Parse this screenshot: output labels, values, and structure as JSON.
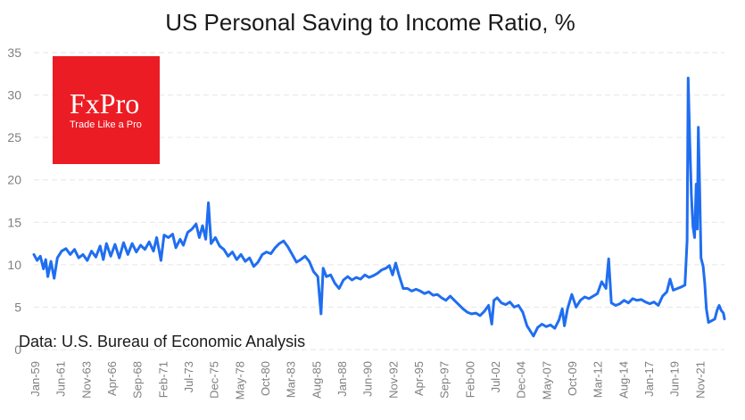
{
  "chart_data": {
    "type": "line",
    "title": "US Personal Saving to Income Ratio, %",
    "xlabel": "",
    "ylabel": "",
    "ylim": [
      0,
      35
    ],
    "yticks": [
      0,
      5,
      10,
      15,
      20,
      25,
      30,
      35
    ],
    "xticks": [
      "Jan-59",
      "Jun-61",
      "Nov-63",
      "Apr-66",
      "Sep-68",
      "Feb-71",
      "Jul-73",
      "Dec-75",
      "May-78",
      "Oct-80",
      "Mar-83",
      "Aug-85",
      "Jan-88",
      "Jun-90",
      "Nov-92",
      "Apr-95",
      "Sep-97",
      "Feb-00",
      "Jul-02",
      "Dec-04",
      "May-07",
      "Oct-09",
      "Mar-12",
      "Aug-14",
      "Jan-17",
      "Jun-19",
      "Nov-21"
    ],
    "x_start": 1959.0,
    "x_end": 2023.7,
    "grid": true,
    "line_color": "#1f6ef0",
    "series": [
      {
        "name": "",
        "points": [
          [
            1959.0,
            11.2
          ],
          [
            1959.3,
            10.5
          ],
          [
            1959.6,
            11.0
          ],
          [
            1959.9,
            9.5
          ],
          [
            1960.1,
            10.6
          ],
          [
            1960.3,
            8.6
          ],
          [
            1960.6,
            10.4
          ],
          [
            1960.9,
            8.4
          ],
          [
            1961.2,
            10.8
          ],
          [
            1961.6,
            11.6
          ],
          [
            1962.0,
            11.9
          ],
          [
            1962.4,
            11.2
          ],
          [
            1962.8,
            11.8
          ],
          [
            1963.2,
            10.8
          ],
          [
            1963.6,
            11.2
          ],
          [
            1964.0,
            10.5
          ],
          [
            1964.4,
            11.6
          ],
          [
            1964.8,
            10.9
          ],
          [
            1965.2,
            12.2
          ],
          [
            1965.5,
            10.6
          ],
          [
            1965.8,
            12.5
          ],
          [
            1966.2,
            11.0
          ],
          [
            1966.6,
            12.4
          ],
          [
            1967.0,
            10.8
          ],
          [
            1967.4,
            12.6
          ],
          [
            1967.8,
            11.2
          ],
          [
            1968.2,
            12.5
          ],
          [
            1968.6,
            11.5
          ],
          [
            1969.0,
            12.3
          ],
          [
            1969.4,
            11.8
          ],
          [
            1969.8,
            12.7
          ],
          [
            1970.2,
            11.6
          ],
          [
            1970.5,
            13.2
          ],
          [
            1970.9,
            10.5
          ],
          [
            1971.2,
            13.5
          ],
          [
            1971.6,
            13.2
          ],
          [
            1972.0,
            13.6
          ],
          [
            1972.3,
            12.0
          ],
          [
            1972.7,
            13.0
          ],
          [
            1973.0,
            12.3
          ],
          [
            1973.4,
            13.8
          ],
          [
            1973.8,
            14.2
          ],
          [
            1974.2,
            14.8
          ],
          [
            1974.5,
            13.2
          ],
          [
            1974.8,
            14.6
          ],
          [
            1975.1,
            13.0
          ],
          [
            1975.35,
            17.3
          ],
          [
            1975.6,
            12.5
          ],
          [
            1976.0,
            13.2
          ],
          [
            1976.4,
            12.2
          ],
          [
            1976.8,
            11.8
          ],
          [
            1977.2,
            11.0
          ],
          [
            1977.6,
            11.5
          ],
          [
            1978.0,
            10.6
          ],
          [
            1978.4,
            11.2
          ],
          [
            1978.8,
            10.4
          ],
          [
            1979.2,
            10.8
          ],
          [
            1979.6,
            9.8
          ],
          [
            1980.0,
            10.3
          ],
          [
            1980.4,
            11.2
          ],
          [
            1980.8,
            11.5
          ],
          [
            1981.2,
            11.3
          ],
          [
            1981.6,
            12.0
          ],
          [
            1982.0,
            12.5
          ],
          [
            1982.4,
            12.8
          ],
          [
            1982.8,
            12.1
          ],
          [
            1983.2,
            11.2
          ],
          [
            1983.6,
            10.3
          ],
          [
            1984.0,
            10.6
          ],
          [
            1984.4,
            11.0
          ],
          [
            1984.8,
            10.4
          ],
          [
            1985.2,
            9.2
          ],
          [
            1985.6,
            8.6
          ],
          [
            1985.9,
            4.2
          ],
          [
            1986.1,
            9.6
          ],
          [
            1986.4,
            8.6
          ],
          [
            1986.8,
            8.8
          ],
          [
            1987.2,
            7.8
          ],
          [
            1987.6,
            7.2
          ],
          [
            1988.0,
            8.2
          ],
          [
            1988.4,
            8.6
          ],
          [
            1988.8,
            8.2
          ],
          [
            1989.2,
            8.5
          ],
          [
            1989.6,
            8.3
          ],
          [
            1990.0,
            8.8
          ],
          [
            1990.4,
            8.5
          ],
          [
            1990.8,
            8.7
          ],
          [
            1991.2,
            9.0
          ],
          [
            1991.6,
            9.4
          ],
          [
            1992.0,
            9.6
          ],
          [
            1992.3,
            9.9
          ],
          [
            1992.6,
            8.8
          ],
          [
            1992.9,
            10.2
          ],
          [
            1993.2,
            8.8
          ],
          [
            1993.6,
            7.2
          ],
          [
            1994.0,
            7.2
          ],
          [
            1994.4,
            6.9
          ],
          [
            1994.8,
            7.1
          ],
          [
            1995.2,
            6.9
          ],
          [
            1995.6,
            6.6
          ],
          [
            1996.0,
            6.8
          ],
          [
            1996.4,
            6.4
          ],
          [
            1996.8,
            6.5
          ],
          [
            1997.2,
            6.1
          ],
          [
            1997.6,
            5.8
          ],
          [
            1998.0,
            6.3
          ],
          [
            1998.4,
            5.8
          ],
          [
            1998.8,
            5.3
          ],
          [
            1999.2,
            4.8
          ],
          [
            1999.6,
            4.4
          ],
          [
            2000.0,
            4.2
          ],
          [
            2000.4,
            4.3
          ],
          [
            2000.8,
            4.0
          ],
          [
            2001.2,
            4.5
          ],
          [
            2001.6,
            5.2
          ],
          [
            2001.9,
            3.0
          ],
          [
            2002.1,
            5.8
          ],
          [
            2002.4,
            6.1
          ],
          [
            2002.8,
            5.5
          ],
          [
            2003.2,
            5.3
          ],
          [
            2003.6,
            5.6
          ],
          [
            2004.0,
            5.0
          ],
          [
            2004.4,
            5.2
          ],
          [
            2004.8,
            4.4
          ],
          [
            2005.2,
            2.8
          ],
          [
            2005.6,
            2.0
          ],
          [
            2005.8,
            1.6
          ],
          [
            2006.2,
            2.6
          ],
          [
            2006.6,
            3.0
          ],
          [
            2007.0,
            2.7
          ],
          [
            2007.4,
            2.9
          ],
          [
            2007.8,
            2.5
          ],
          [
            2008.2,
            3.5
          ],
          [
            2008.5,
            4.8
          ],
          [
            2008.7,
            2.8
          ],
          [
            2009.0,
            4.8
          ],
          [
            2009.4,
            6.5
          ],
          [
            2009.8,
            5.0
          ],
          [
            2010.2,
            5.8
          ],
          [
            2010.6,
            6.2
          ],
          [
            2011.0,
            6.0
          ],
          [
            2011.4,
            6.3
          ],
          [
            2011.8,
            6.6
          ],
          [
            2012.2,
            8.0
          ],
          [
            2012.6,
            7.2
          ],
          [
            2012.85,
            10.7
          ],
          [
            2013.1,
            5.5
          ],
          [
            2013.5,
            5.2
          ],
          [
            2013.9,
            5.4
          ],
          [
            2014.3,
            5.8
          ],
          [
            2014.7,
            5.5
          ],
          [
            2015.1,
            6.0
          ],
          [
            2015.5,
            5.8
          ],
          [
            2015.9,
            5.9
          ],
          [
            2016.3,
            5.6
          ],
          [
            2016.7,
            5.4
          ],
          [
            2017.1,
            5.6
          ],
          [
            2017.5,
            5.2
          ],
          [
            2017.9,
            6.3
          ],
          [
            2018.3,
            6.8
          ],
          [
            2018.6,
            8.3
          ],
          [
            2018.9,
            7.0
          ],
          [
            2019.3,
            7.2
          ],
          [
            2019.7,
            7.4
          ],
          [
            2020.0,
            7.6
          ],
          [
            2020.2,
            12.8
          ],
          [
            2020.3,
            32.0
          ],
          [
            2020.45,
            24.5
          ],
          [
            2020.6,
            18.2
          ],
          [
            2020.75,
            14.5
          ],
          [
            2020.9,
            13.2
          ],
          [
            2021.05,
            19.5
          ],
          [
            2021.15,
            14.2
          ],
          [
            2021.25,
            26.2
          ],
          [
            2021.35,
            20.5
          ],
          [
            2021.5,
            10.8
          ],
          [
            2021.7,
            9.8
          ],
          [
            2021.85,
            7.8
          ],
          [
            2022.0,
            4.8
          ],
          [
            2022.2,
            3.2
          ],
          [
            2022.5,
            3.4
          ],
          [
            2022.8,
            3.6
          ],
          [
            2023.0,
            4.6
          ],
          [
            2023.2,
            5.2
          ],
          [
            2023.4,
            4.6
          ],
          [
            2023.6,
            4.3
          ],
          [
            2023.7,
            3.6
          ]
        ]
      }
    ],
    "source_note": "Data: U.S. Bureau of Economic Analysis"
  },
  "logo": {
    "name": "FxPro",
    "tagline": "Trade Like a Pro",
    "color": "#ec1c24"
  }
}
